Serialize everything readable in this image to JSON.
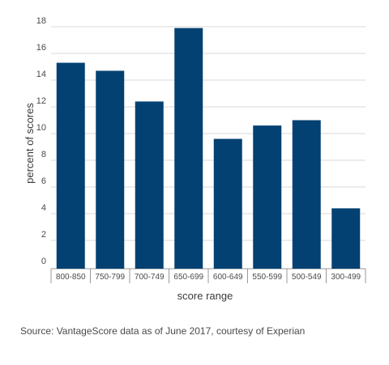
{
  "chart_data": {
    "type": "bar",
    "title": "",
    "xlabel": "score range",
    "ylabel": "percent of scores",
    "categories": [
      "800-850",
      "750-799",
      "700-749",
      "650-699",
      "600-649",
      "550-599",
      "500-549",
      "300-499"
    ],
    "values": [
      15.3,
      14.7,
      12.4,
      17.9,
      9.6,
      10.6,
      11.0,
      4.4
    ],
    "ylim": [
      0,
      18
    ],
    "yticks": [
      0,
      2,
      4,
      6,
      8,
      10,
      12,
      14,
      16,
      18
    ],
    "grid": true,
    "legend": "none",
    "bar_color": "#034172",
    "grid_color": "#d9d9d9"
  },
  "footer": {
    "source": "Source: VantageScore data as of June 2017, courtesy of Experian"
  }
}
